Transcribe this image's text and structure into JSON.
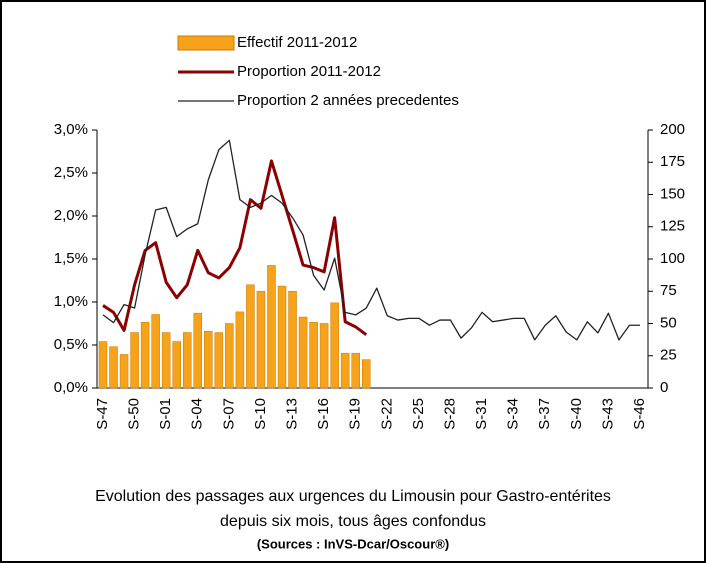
{
  "chart_data": {
    "type": "bar-line",
    "caption": "Evolution des passages aux urgences  du Limousin pour Gastro-entérites",
    "caption2": "depuis six mois, tous âges confondus",
    "source": "(Sources : InVS-Dcar/Oscour®)",
    "categories": [
      "S-47",
      null,
      null,
      "S-50",
      null,
      null,
      "S-01",
      null,
      null,
      "S-04",
      null,
      null,
      "S-07",
      null,
      null,
      "S-10",
      null,
      null,
      "S-13",
      null,
      null,
      "S-16",
      null,
      null,
      "S-19",
      null,
      null,
      "S-22",
      null,
      null,
      "S-25",
      null,
      null,
      "S-28",
      null,
      null,
      "S-31",
      null,
      null,
      "S-34",
      null,
      null,
      "S-37",
      null,
      null,
      "S-40",
      null,
      null,
      "S-43",
      null,
      null,
      "S-46"
    ],
    "series": [
      {
        "name": "Effectif 2011-2012",
        "color": "#f7a21b",
        "axis": "y2",
        "kind": "bar",
        "values": [
          36,
          32,
          26,
          43,
          51,
          57,
          43,
          36,
          43,
          58,
          44,
          43,
          50,
          59,
          80,
          75,
          95,
          79,
          75,
          55,
          51,
          50,
          66,
          27,
          27,
          22,
          null,
          null,
          null,
          null,
          null,
          null,
          null,
          null,
          null,
          null,
          null,
          null,
          null,
          null,
          null,
          null,
          null,
          null,
          null,
          null,
          null,
          null,
          null,
          null,
          null,
          null
        ]
      },
      {
        "name": "Proportion 2011-2012",
        "color": "#8b0000",
        "axis": "y",
        "kind": "line",
        "values": [
          0.96,
          0.88,
          0.67,
          1.2,
          1.6,
          1.69,
          1.23,
          1.05,
          1.2,
          1.6,
          1.34,
          1.28,
          1.4,
          1.63,
          2.19,
          2.09,
          2.64,
          2.24,
          1.84,
          1.43,
          1.4,
          1.35,
          1.98,
          0.77,
          0.71,
          0.62,
          null,
          null,
          null,
          null,
          null,
          null,
          null,
          null,
          null,
          null,
          null,
          null,
          null,
          null,
          null,
          null,
          null,
          null,
          null,
          null,
          null,
          null,
          null,
          null,
          null,
          null
        ]
      },
      {
        "name": "Proportion 2 années precedentes",
        "color": "#222222",
        "axis": "y",
        "kind": "line",
        "values": [
          0.85,
          0.76,
          0.97,
          0.93,
          1.55,
          2.07,
          2.1,
          1.76,
          1.85,
          1.91,
          2.42,
          2.77,
          2.88,
          2.19,
          2.1,
          2.15,
          2.24,
          2.15,
          1.98,
          1.78,
          1.31,
          1.14,
          1.51,
          0.88,
          0.85,
          0.93,
          1.16,
          0.84,
          0.79,
          0.81,
          0.81,
          0.73,
          0.79,
          0.79,
          0.58,
          0.7,
          0.88,
          0.77,
          0.79,
          0.81,
          0.81,
          0.56,
          0.73,
          0.84,
          0.65,
          0.56,
          0.77,
          0.64,
          0.87,
          0.56,
          0.73,
          0.73
        ]
      }
    ],
    "ylim": [
      0,
      3
    ],
    "yticks": [
      {
        "value": 0,
        "label": "0,0%"
      },
      {
        "value": 0.5,
        "label": "0,5%"
      },
      {
        "value": 1,
        "label": "1,0%"
      },
      {
        "value": 1.5,
        "label": "1,5%"
      },
      {
        "value": 2,
        "label": "2,0%"
      },
      {
        "value": 2.5,
        "label": "2,5%"
      },
      {
        "value": 3,
        "label": "3,0%"
      }
    ],
    "y2lim": [
      0,
      200
    ],
    "y2ticks": [
      0,
      25,
      50,
      75,
      100,
      125,
      150,
      175,
      200
    ],
    "grid": false
  }
}
